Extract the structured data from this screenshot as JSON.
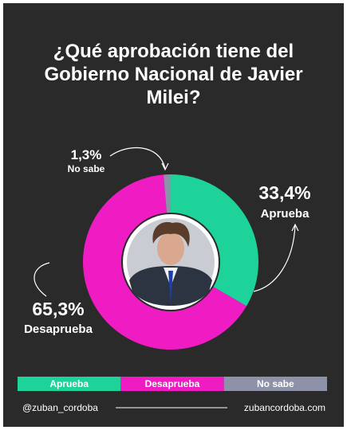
{
  "chart_data": {
    "type": "pie",
    "donut": true,
    "title": "¿Qué aprobación tiene del Gobierno Nacional de Javier Milei?",
    "categories": [
      "Aprueba",
      "Desaprueba",
      "No sabe"
    ],
    "values": [
      33.4,
      65.3,
      1.3
    ],
    "value_labels": [
      "33,4%",
      "65,3%",
      "1,3%"
    ],
    "colors": [
      "#1ed39a",
      "#f01cc3",
      "#8d92a8"
    ]
  },
  "footer": {
    "left": "@zuban_cordoba",
    "right": "zubancordoba.com"
  }
}
